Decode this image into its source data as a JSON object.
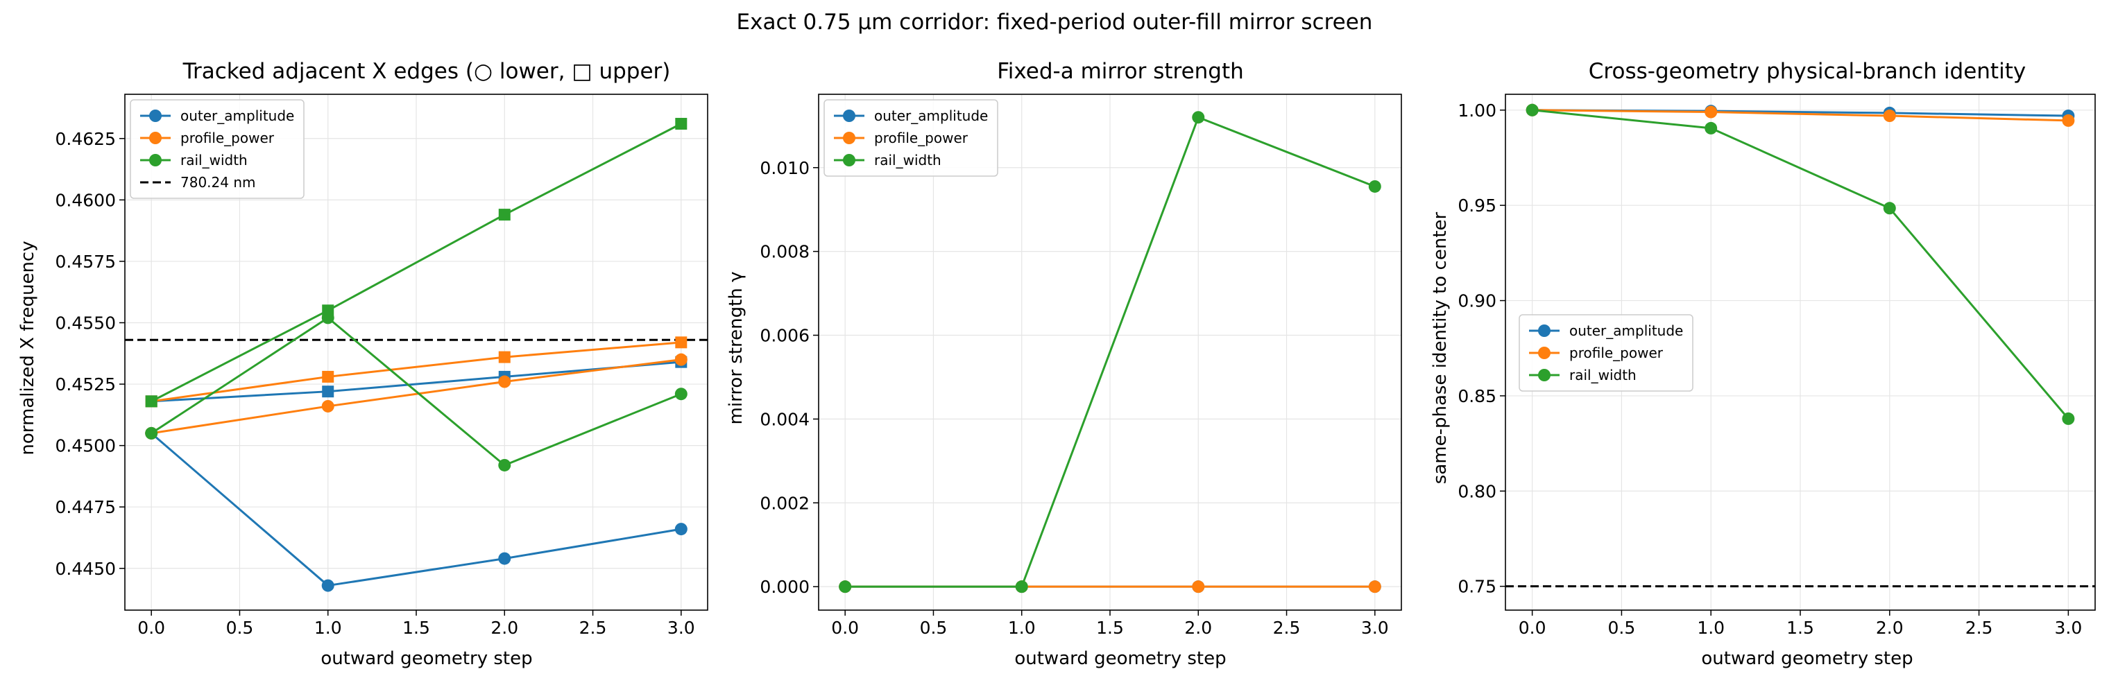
{
  "figure": {
    "suptitle": "Exact 0.75 µm corridor: fixed-period outer-fill mirror screen"
  },
  "colors": {
    "outer_amplitude": "#1f77b4",
    "profile_power": "#ff7f0e",
    "rail_width": "#2ca02c",
    "reference_line": "#000000",
    "grid": "#e5e5e5"
  },
  "chart_data": [
    {
      "type": "line",
      "title": "Tracked adjacent X edges (○ lower, □ upper)",
      "xlabel": "outward geometry step",
      "ylabel": "normalized X frequency",
      "x": [
        0,
        1,
        2,
        3
      ],
      "xlim": [
        -0.15,
        3.15
      ],
      "ylim": [
        0.4433,
        0.4643
      ],
      "xticks": [
        "0.0",
        "0.5",
        "1.0",
        "1.5",
        "2.0",
        "2.5",
        "3.0"
      ],
      "yticks": [
        "0.4450",
        "0.4475",
        "0.4500",
        "0.4525",
        "0.4550",
        "0.4575",
        "0.4600",
        "0.4625"
      ],
      "grid": true,
      "legend_position": "upper-left",
      "series": [
        {
          "name": "outer_amplitude",
          "marker": "circle",
          "edge": "lower",
          "values": [
            0.4505,
            0.4443,
            0.4454,
            0.4466
          ]
        },
        {
          "name": "",
          "marker": "square",
          "edge": "upper",
          "series_key": "outer_amplitude",
          "values": [
            0.4518,
            0.4522,
            0.4528,
            0.4534
          ]
        },
        {
          "name": "profile_power",
          "marker": "circle",
          "edge": "lower",
          "values": [
            0.4505,
            0.4516,
            0.4526,
            0.4535
          ]
        },
        {
          "name": "",
          "marker": "square",
          "edge": "upper",
          "series_key": "profile_power",
          "values": [
            0.4518,
            0.4528,
            0.4536,
            0.4542
          ]
        },
        {
          "name": "rail_width",
          "marker": "circle",
          "edge": "lower",
          "values": [
            0.4505,
            0.4552,
            0.4492,
            0.4521
          ]
        },
        {
          "name": "",
          "marker": "square",
          "edge": "upper",
          "series_key": "rail_width",
          "values": [
            0.4518,
            0.4555,
            0.4594,
            0.4631
          ]
        }
      ],
      "reference_line": {
        "label": "780.24 nm",
        "y": 0.4543,
        "style": "dashed"
      }
    },
    {
      "type": "line",
      "title": "Fixed-a mirror strength",
      "xlabel": "outward geometry step",
      "ylabel": "mirror strength γ",
      "x": [
        0,
        1,
        2,
        3
      ],
      "xlim": [
        -0.15,
        3.15
      ],
      "ylim": [
        -0.00056,
        0.01175
      ],
      "xticks": [
        "0.0",
        "0.5",
        "1.0",
        "1.5",
        "2.0",
        "2.5",
        "3.0"
      ],
      "yticks": [
        "0.000",
        "0.002",
        "0.004",
        "0.006",
        "0.008",
        "0.010"
      ],
      "grid": true,
      "legend_position": "upper-left",
      "series": [
        {
          "name": "outer_amplitude",
          "marker": "circle",
          "values": [
            0.0,
            0.0,
            0.0,
            0.0
          ]
        },
        {
          "name": "profile_power",
          "marker": "circle",
          "values": [
            0.0,
            0.0,
            0.0,
            0.0
          ]
        },
        {
          "name": "rail_width",
          "marker": "circle",
          "values": [
            0.0,
            0.0,
            0.0112,
            0.00955
          ]
        }
      ]
    },
    {
      "type": "line",
      "title": "Cross-geometry physical-branch identity",
      "xlabel": "outward geometry step",
      "ylabel": "same-phase identity to center",
      "x": [
        0,
        1,
        2,
        3
      ],
      "xlim": [
        -0.15,
        3.15
      ],
      "ylim": [
        0.7375,
        1.0083
      ],
      "xticks": [
        "0.0",
        "0.5",
        "1.0",
        "1.5",
        "2.0",
        "2.5",
        "3.0"
      ],
      "yticks": [
        "0.75",
        "0.80",
        "0.85",
        "0.90",
        "0.95",
        "1.00"
      ],
      "grid": true,
      "legend_position": "center-left",
      "series": [
        {
          "name": "outer_amplitude",
          "marker": "circle",
          "values": [
            1.0,
            0.9995,
            0.9985,
            0.997
          ]
        },
        {
          "name": "profile_power",
          "marker": "circle",
          "values": [
            1.0,
            0.999,
            0.997,
            0.9945
          ]
        },
        {
          "name": "rail_width",
          "marker": "circle",
          "values": [
            1.0,
            0.9905,
            0.9485,
            0.838
          ]
        }
      ],
      "reference_line": {
        "label": "",
        "y": 0.75,
        "style": "dashed"
      }
    }
  ]
}
